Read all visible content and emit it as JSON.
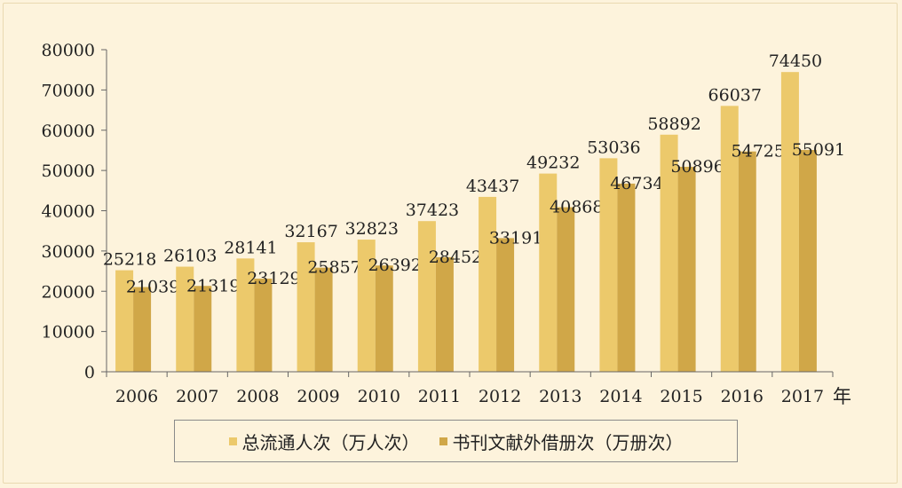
{
  "chart_data": {
    "type": "bar",
    "categories": [
      "2006",
      "2007",
      "2008",
      "2009",
      "2010",
      "2011",
      "2012",
      "2013",
      "2014",
      "2015",
      "2016",
      "2017"
    ],
    "series": [
      {
        "name": "总流通人次（万人次）",
        "color": "#ecc96b",
        "values": [
          25218,
          26103,
          28141,
          32167,
          32823,
          37423,
          43437,
          49232,
          53036,
          58892,
          66037,
          74450
        ]
      },
      {
        "name": "书刊文献外借册次（万册次）",
        "color": "#d0a748",
        "values": [
          21039,
          21319,
          23129,
          25857,
          26392,
          28452,
          33191,
          40868,
          46734,
          50896,
          54725,
          55091
        ]
      }
    ],
    "y_ticks": [
      "0",
      "10000",
      "20000",
      "30000",
      "40000",
      "50000",
      "60000",
      "70000",
      "80000"
    ],
    "ylim": [
      0,
      80000
    ],
    "x_unit": "年",
    "legend_position": "bottom",
    "grid": false
  }
}
